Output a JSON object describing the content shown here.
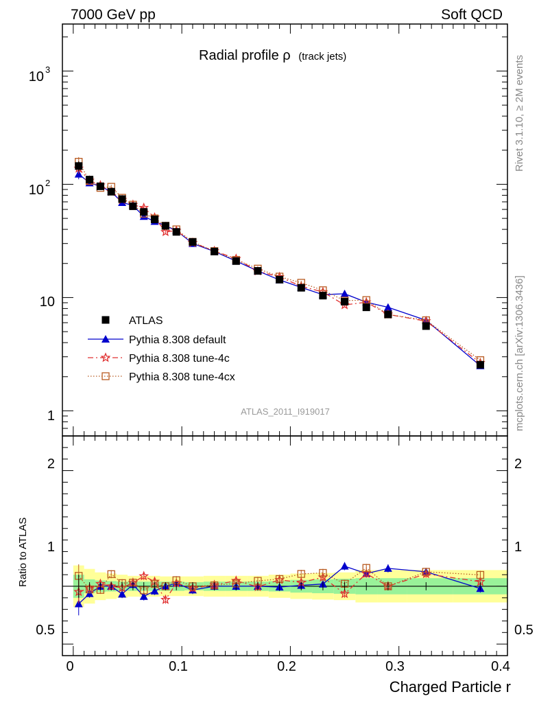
{
  "header": {
    "left": "7000 GeV pp",
    "right": "Soft QCD"
  },
  "side_labels": {
    "rivet": "Rivet 3.1.10, ≥ 2M events",
    "mcplots": "mcplots.cern.ch [arXiv:1306.3436]"
  },
  "chart_data": {
    "type": "scatter",
    "title": "Radial profile ρ",
    "title_suffix": "(track jets)",
    "analysis_id": "ATLAS_2011_I919017",
    "xlabel": "Charged Particle r",
    "ratio_ylabel": "Ratio to ATLAS",
    "xlim": [
      -0.01,
      0.4
    ],
    "main_ylim": [
      0.6,
      2600
    ],
    "main_yscale": "log",
    "ratio_ylim": [
      0.4,
      2.3
    ],
    "x_tick_labels": [
      "0",
      "0.1",
      "0.2",
      "0.3",
      "0.4"
    ],
    "main_y_tick_labels": [
      "1",
      "10",
      "10",
      "3",
      "10",
      "2"
    ],
    "main_y_ticks": [
      {
        "value": 1,
        "label": "1"
      },
      {
        "value": 10,
        "label": "10"
      },
      {
        "value": 100,
        "base": "10",
        "exp": "2"
      },
      {
        "value": 1000,
        "base": "10",
        "exp": "3"
      }
    ],
    "ratio_y_tick_labels": [
      "0.5",
      "1",
      "2"
    ],
    "legend_position": "bottom-left",
    "x": [
      0.005,
      0.015,
      0.025,
      0.035,
      0.045,
      0.055,
      0.065,
      0.075,
      0.085,
      0.095,
      0.11,
      0.13,
      0.15,
      0.17,
      0.19,
      0.21,
      0.23,
      0.25,
      0.27,
      0.29,
      0.325,
      0.375
    ],
    "series": [
      {
        "name": "ATLAS",
        "color": "#000000",
        "marker": "filled-square",
        "values": [
          145,
          110,
          96,
          86,
          74,
          64,
          57,
          49,
          43,
          38,
          31,
          25.5,
          21,
          17.2,
          14.4,
          12.2,
          10.4,
          9.2,
          8.2,
          7.1,
          5.6,
          2.55
        ]
      },
      {
        "name": "Pythia 8.308 default",
        "color": "#0000cc",
        "marker": "filled-triangle",
        "line": "solid",
        "values": [
          123,
          103,
          96,
          86,
          69,
          65,
          52,
          47,
          43,
          39,
          30,
          25.5,
          21,
          17.2,
          14.3,
          12.3,
          10.6,
          10.8,
          9.1,
          8.2,
          6.3,
          2.5
        ]
      },
      {
        "name": "Pythia 8.308 tune-4c",
        "color": "#e03030",
        "marker": "open-star",
        "line": "dash-dot",
        "values": [
          138,
          108,
          98,
          86,
          73,
          66,
          62,
          51,
          38,
          39,
          30.5,
          25.8,
          22,
          17.1,
          15.2,
          12.6,
          11.2,
          8.6,
          9.1,
          7.1,
          6.2,
          2.65
        ]
      },
      {
        "name": "Pythia 8.308 tune-4cx",
        "color": "#b85a20",
        "marker": "open-square",
        "line": "dotted",
        "values": [
          158,
          107,
          93,
          95,
          76,
          66,
          55,
          50,
          43,
          40,
          31,
          25.7,
          21.5,
          18,
          15.3,
          13.5,
          11.6,
          9.4,
          9.5,
          7.1,
          6.3,
          2.8
        ]
      }
    ]
  }
}
